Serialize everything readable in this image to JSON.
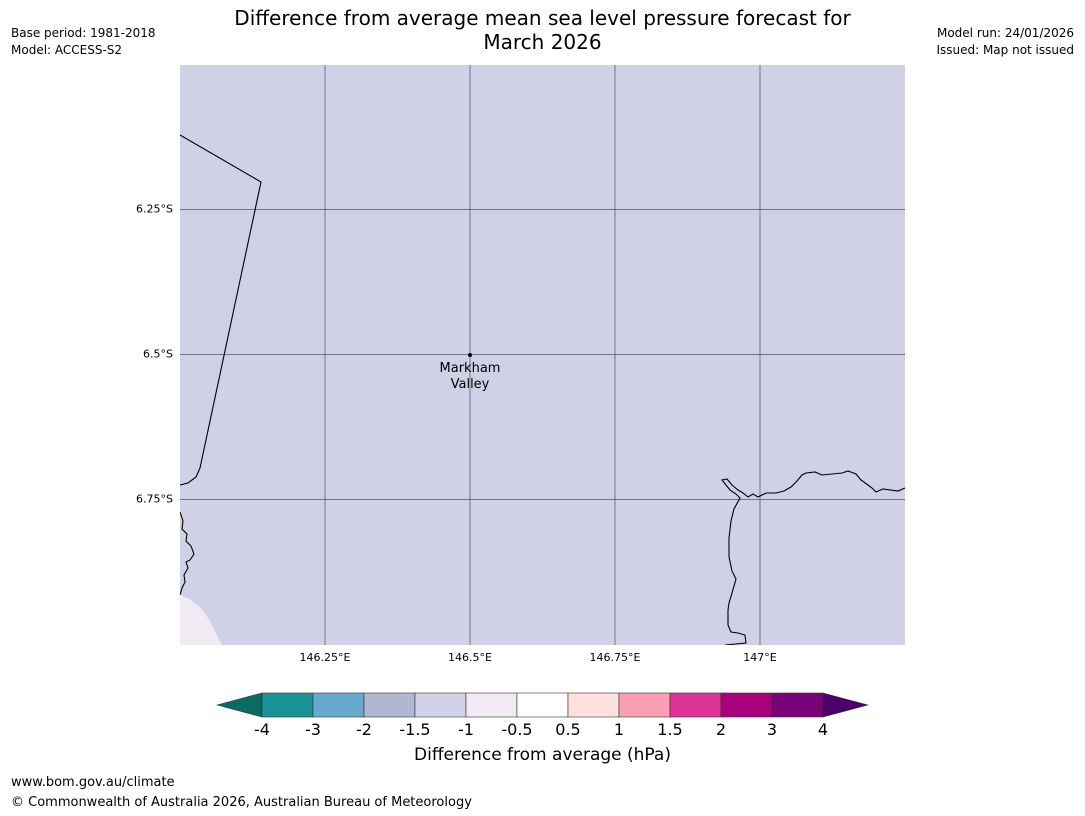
{
  "header": {
    "base_period": "Base period: 1981-2018",
    "model": "Model: ACCESS-S2",
    "model_run": "Model run: 24/01/2026",
    "issued": "Issued: Map not issued",
    "title_line1": "Difference from average mean sea level pressure forecast for",
    "title_line2": "March 2026"
  },
  "map": {
    "place_name_line1": "Markham",
    "place_name_line2": "Valley",
    "fill_color": "#d0d1e6",
    "corner_fill_color": "#f0eaf2",
    "latitude_labels": [
      "6.25°S",
      "6.5°S",
      "6.75°S"
    ],
    "longitude_labels": [
      "146.25°E",
      "146.5°E",
      "146.75°E",
      "147°E"
    ]
  },
  "colorbar": {
    "label": "Difference from average (hPa)",
    "ticks": [
      "-4",
      "-3",
      "-2",
      "-1.5",
      "-1",
      "-0.5",
      "0.5",
      "1",
      "1.5",
      "2",
      "3",
      "4"
    ],
    "under_color": "#0c6b60",
    "over_color": "#4a0068",
    "colors": [
      "#1a9297",
      "#67a9cf",
      "#b1b7d1",
      "#d0d1e6",
      "#f1eaf2",
      "#ffffff",
      "#fee0df",
      "#f99fb4",
      "#dc3496",
      "#ab007e",
      "#7a017a"
    ]
  },
  "footer": {
    "url": "www.bom.gov.au/climate",
    "copyright": "© Commonwealth of Australia 2026, Australian Bureau of Meteorology"
  }
}
